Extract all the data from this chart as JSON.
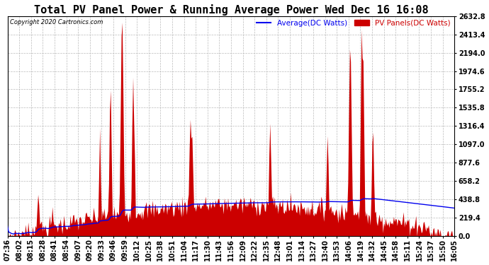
{
  "title": "Total PV Panel Power & Running Average Power Wed Dec 16 16:08",
  "copyright": "Copyright 2020 Cartronics.com",
  "legend_avg": "Average(DC Watts)",
  "legend_pv": "PV Panels(DC Watts)",
  "yticks": [
    0.0,
    219.4,
    438.8,
    658.2,
    877.6,
    1097.0,
    1316.4,
    1535.8,
    1755.2,
    1974.6,
    2194.0,
    2413.4,
    2632.8
  ],
  "ymax": 2632.8,
  "ymin": 0,
  "background_color": "#ffffff",
  "grid_color": "#bbbbbb",
  "fill_color": "#cc0000",
  "avg_color": "#0000ee",
  "title_fontsize": 11,
  "tick_fontsize": 7,
  "xtick_labels": [
    "07:36",
    "08:02",
    "08:15",
    "08:28",
    "08:41",
    "08:54",
    "09:07",
    "09:20",
    "09:33",
    "09:46",
    "09:59",
    "10:12",
    "10:25",
    "10:38",
    "10:51",
    "11:04",
    "11:17",
    "11:30",
    "11:43",
    "11:56",
    "12:09",
    "12:22",
    "12:35",
    "12:48",
    "13:01",
    "13:14",
    "13:27",
    "13:40",
    "13:53",
    "14:06",
    "14:19",
    "14:32",
    "14:45",
    "14:58",
    "15:11",
    "15:24",
    "15:37",
    "15:50",
    "16:05"
  ]
}
